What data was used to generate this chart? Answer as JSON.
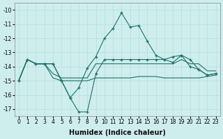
{
  "xlabel": "Humidex (Indice chaleur)",
  "background_color": "#ceeeed",
  "grid_color": "#b8dcda",
  "line_color": "#1e7068",
  "xlim_min": -0.5,
  "xlim_max": 23.5,
  "ylim_min": -17.5,
  "ylim_max": -9.5,
  "yticks": [
    -17,
    -16,
    -15,
    -14,
    -13,
    -12,
    -11,
    -10
  ],
  "xticks": [
    0,
    1,
    2,
    3,
    4,
    5,
    6,
    7,
    8,
    9,
    10,
    11,
    12,
    13,
    14,
    15,
    16,
    17,
    18,
    19,
    20,
    21,
    22,
    23
  ],
  "y_high_marker": [
    -15.0,
    -13.5,
    -13.8,
    -13.8,
    -13.8,
    -15.0,
    -16.2,
    -15.5,
    -14.1,
    -13.3,
    -12.0,
    -11.3,
    -10.2,
    -11.2,
    -11.1,
    -12.2,
    -13.2,
    -13.5,
    -13.7,
    -13.2,
    -14.0,
    -14.2,
    -14.6,
    -14.5
  ],
  "y_low_marker": [
    -15.0,
    -13.5,
    -13.8,
    -13.8,
    -13.8,
    -15.0,
    -16.2,
    -17.2,
    -17.2,
    -14.5,
    -13.5,
    -13.5,
    -13.5,
    -13.5,
    -13.5,
    -13.5,
    -13.5,
    -13.5,
    -13.3,
    -13.2,
    -13.5,
    -14.2,
    -14.6,
    -14.5
  ],
  "y_flat_top": [
    -15.0,
    -13.5,
    -13.8,
    -13.8,
    -14.5,
    -14.8,
    -14.8,
    -14.8,
    -14.8,
    -13.8,
    -13.8,
    -13.8,
    -13.8,
    -13.8,
    -13.8,
    -13.8,
    -13.8,
    -13.8,
    -13.8,
    -13.5,
    -13.8,
    -13.8,
    -14.3,
    -14.3
  ],
  "y_flat_bot": [
    -15.0,
    -13.5,
    -13.8,
    -13.8,
    -14.8,
    -15.0,
    -15.0,
    -15.0,
    -15.0,
    -14.8,
    -14.8,
    -14.8,
    -14.8,
    -14.8,
    -14.7,
    -14.7,
    -14.7,
    -14.8,
    -14.8,
    -14.8,
    -14.8,
    -14.8,
    -14.7,
    -14.6
  ],
  "xlabel_fontsize": 7,
  "tick_fontsize": 5.5,
  "linewidth": 0.8,
  "markersize": 3.5
}
